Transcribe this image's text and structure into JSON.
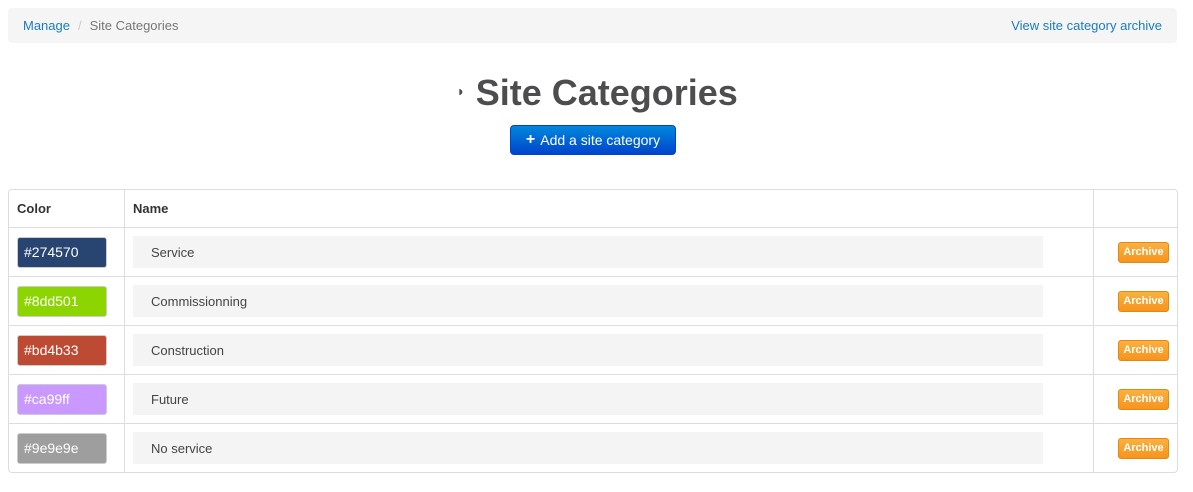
{
  "breadcrumb": {
    "items": [
      "Manage",
      "Site Categories"
    ],
    "archive_link": "View site category archive"
  },
  "page": {
    "title": "Site Categories",
    "title_icon": "half-circle-icon",
    "add_button": "Add a site category"
  },
  "table": {
    "headers": [
      "Color",
      "Name",
      ""
    ],
    "rows": [
      {
        "color": "#274570",
        "name": "Service",
        "action": "Archive"
      },
      {
        "color": "#8dd501",
        "name": "Commissionning",
        "action": "Archive"
      },
      {
        "color": "#bd4b33",
        "name": "Construction",
        "action": "Archive"
      },
      {
        "color": "#ca99ff",
        "name": "Future",
        "action": "Archive"
      },
      {
        "color": "#9e9e9e",
        "name": "No service",
        "action": "Archive"
      }
    ]
  }
}
